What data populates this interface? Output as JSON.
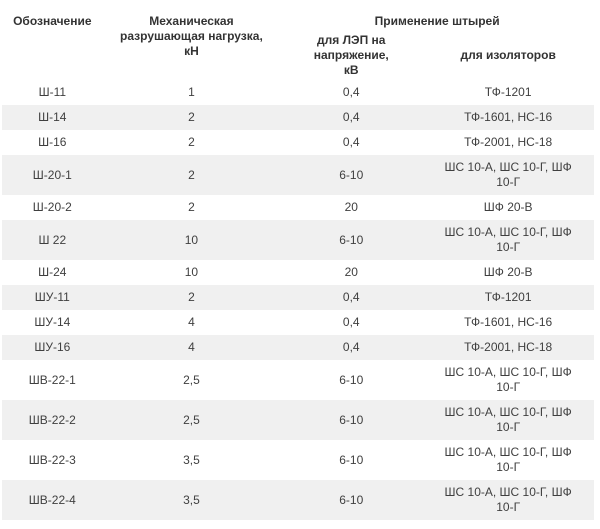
{
  "table": {
    "group_header": "Применение штырей",
    "headers": {
      "designation": "Обозначение",
      "mech_load": "Механическая\nразрушающая нагрузка,\nкН",
      "voltage": "для ЛЭП на напряжение,\nкВ",
      "insulators": "для изоляторов"
    },
    "colors": {
      "stripe": "#f0f0f0",
      "text": "#3f3f3f",
      "header_text": "#333333",
      "background": "#ffffff"
    },
    "rows": [
      {
        "designation": "Ш-11",
        "mech_load": "1",
        "voltage": "0,4",
        "insulators": "ТФ-1201"
      },
      {
        "designation": "Ш-14",
        "mech_load": "2",
        "voltage": "0,4",
        "insulators": "ТФ-1601, НС-16"
      },
      {
        "designation": "Ш-16",
        "mech_load": "2",
        "voltage": "0,4",
        "insulators": "ТФ-2001, НС-18"
      },
      {
        "designation": "Ш-20-1",
        "mech_load": "2",
        "voltage": "6-10",
        "insulators": "ШС 10-А, ШС 10-Г, ШФ 10-Г"
      },
      {
        "designation": "Ш-20-2",
        "mech_load": "2",
        "voltage": "20",
        "insulators": "ШФ 20-В"
      },
      {
        "designation": "Ш 22",
        "mech_load": "10",
        "voltage": "6-10",
        "insulators": "ШС 10-А, ШС 10-Г, ШФ 10-Г"
      },
      {
        "designation": "Ш-24",
        "mech_load": "10",
        "voltage": "20",
        "insulators": "ШФ 20-В"
      },
      {
        "designation": "ШУ-11",
        "mech_load": "2",
        "voltage": "0,4",
        "insulators": "ТФ-1201"
      },
      {
        "designation": "ШУ-14",
        "mech_load": "4",
        "voltage": "0,4",
        "insulators": "ТФ-1601, НС-16"
      },
      {
        "designation": "ШУ-16",
        "mech_load": "4",
        "voltage": "0,4",
        "insulators": "ТФ-2001, НС-18"
      },
      {
        "designation": "ШВ-22-1",
        "mech_load": "2,5",
        "voltage": "6-10",
        "insulators": "ШС 10-А, ШС 10-Г, ШФ 10-Г"
      },
      {
        "designation": "ШВ-22-2",
        "mech_load": "2,5",
        "voltage": "6-10",
        "insulators": "ШС 10-А, ШС 10-Г, ШФ 10-Г"
      },
      {
        "designation": "ШВ-22-3",
        "mech_load": "3,5",
        "voltage": "6-10",
        "insulators": "ШС 10-А, ШС 10-Г, ШФ 10-Г"
      },
      {
        "designation": "ШВ-22-4",
        "mech_load": "3,5",
        "voltage": "6-10",
        "insulators": "ШС 10-А, ШС 10-Г, ШФ 10-Г"
      }
    ]
  }
}
